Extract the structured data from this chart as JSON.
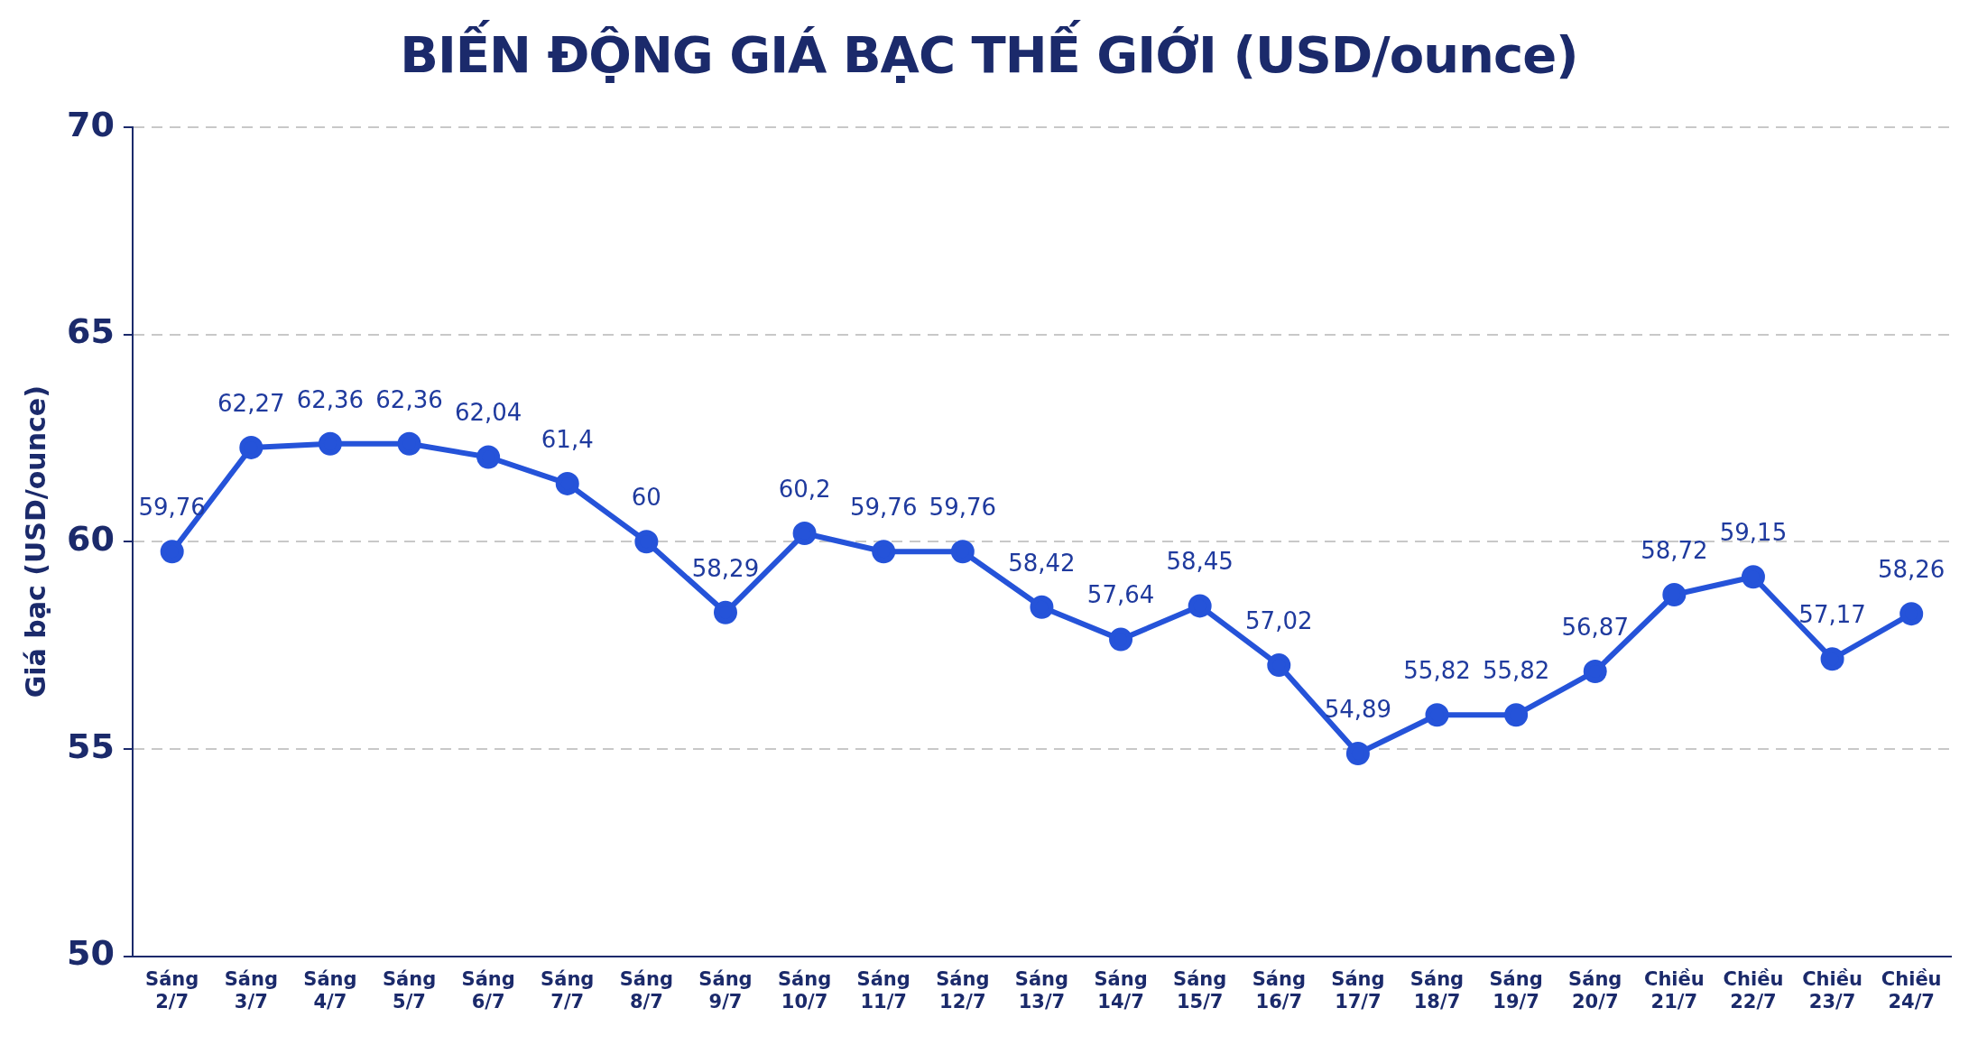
{
  "chart_data": {
    "type": "line",
    "title": "BIẾN ĐỘNG GIÁ BẠC THẾ GIỚI (USD/ounce)",
    "ylabel": "Giá bạc (USD/ounce)",
    "categories": [
      "Sáng 2/7",
      "Sáng 3/7",
      "Sáng 4/7",
      "Sáng 5/7",
      "Sáng 6/7",
      "Sáng 7/7",
      "Sáng 8/7",
      "Sáng 9/7",
      "Sáng 10/7",
      "Sáng 11/7",
      "Sáng 12/7",
      "Sáng 13/7",
      "Sáng 14/7",
      "Sáng 15/7",
      "Sáng 16/7",
      "Sáng 17/7",
      "Sáng 18/7",
      "Sáng 19/7",
      "Sáng 20/7",
      "Chiều 21/7",
      "Chiều 22/7",
      "Chiều 23/7",
      "Chiều 24/7"
    ],
    "series": [
      {
        "color": "#2553d9",
        "values": [
          59.76,
          62.27,
          62.36,
          62.36,
          62.04,
          61.4,
          60,
          58.29,
          60.2,
          59.76,
          59.76,
          58.42,
          57.64,
          58.45,
          57.02,
          54.89,
          55.82,
          55.82,
          56.87,
          58.72,
          59.15,
          57.17,
          58.26
        ],
        "value_labels": [
          "59,76",
          "62,27",
          "62,36",
          "62,36",
          "62,04",
          "61,4",
          "60",
          "58,29",
          "60,2",
          "59,76",
          "59,76",
          "58,42",
          "57,64",
          "58,45",
          "57,02",
          "54,89",
          "55,82",
          "55,82",
          "56,87",
          "58,72",
          "59,15",
          "57,17",
          "58,26"
        ]
      }
    ],
    "ylim": [
      50,
      70
    ],
    "yticks": [
      50,
      55,
      60,
      65,
      70
    ],
    "grid": "y",
    "legend": false,
    "marker": "circle",
    "line_style": "solid"
  }
}
